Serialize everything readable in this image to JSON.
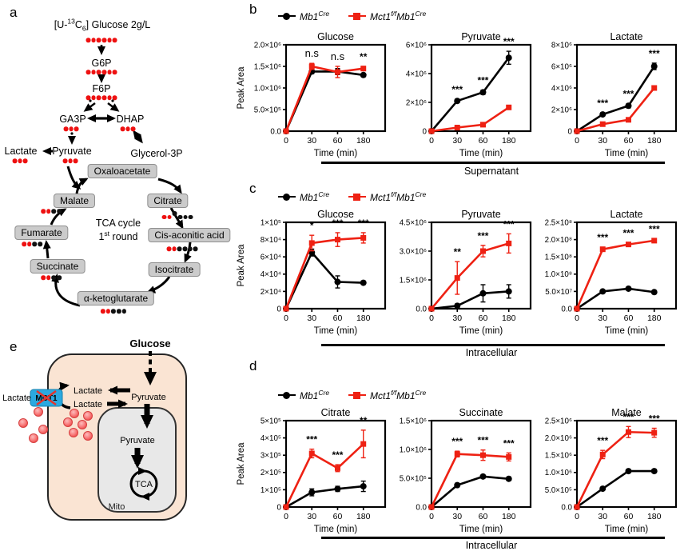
{
  "colors": {
    "series_black": "#000000",
    "series_red": "#ee2113",
    "carbon_red": "#ee1111",
    "carbon_black": "#111111",
    "tca_box_fill": "#cbcbcb",
    "cell_fill": "#fae4d3",
    "mito_fill": "#e8e8e8",
    "mct1_blue": "#2ba9e0",
    "cross_red": "#e4342c"
  },
  "legend": {
    "items": [
      {
        "marker": "black-circle",
        "base1": "Mb1",
        "sup1": "Cre",
        "base2": "",
        "sup2": ""
      },
      {
        "marker": "red-square",
        "base1": "Mct1",
        "sup1": "f/f",
        "base2": "Mb1",
        "sup2": "Cre"
      }
    ]
  },
  "rows": {
    "b": {
      "letter": "b",
      "ylabel": "Peak Area",
      "group_label": "Supernatant"
    },
    "c": {
      "letter": "c",
      "ylabel": "Peak Area",
      "group_label": "Intracellular"
    },
    "d": {
      "letter": "d",
      "ylabel": "Peak Area",
      "group_label": "Intracellular"
    }
  },
  "chart_data": [
    {
      "id": "b-glucose",
      "panel": "b",
      "type": "line",
      "title": "Glucose",
      "xlabel": "Time (min)",
      "ylabel": "Peak Area",
      "x": [
        0,
        30,
        60,
        180
      ],
      "ymax": 2000000.0,
      "grid": false,
      "yticks": [
        {
          "v": 0,
          "label": "0.0"
        },
        {
          "v": 500000.0,
          "label": "5.0×10⁵"
        },
        {
          "v": 1000000.0,
          "label": "1.0×10⁶"
        },
        {
          "v": 1500000.0,
          "label": "1.5×10⁶"
        },
        {
          "v": 2000000.0,
          "label": "2.0×10⁶"
        }
      ],
      "series": [
        {
          "name": "Mb1Cre",
          "color": "#000000",
          "marker": "circle",
          "values": [
            0,
            1380000.0,
            1380000.0,
            1300000.0
          ],
          "err": [
            0,
            50000.0,
            70000.0,
            40000.0
          ]
        },
        {
          "name": "Mct1f/fMb1Cre",
          "color": "#ee2113",
          "marker": "square",
          "values": [
            0,
            1500000.0,
            1370000.0,
            1450000.0
          ],
          "err": [
            0,
            70000.0,
            130000.0,
            50000.0
          ]
        }
      ],
      "annotations": [
        {
          "x": 30,
          "text": "n.s"
        },
        {
          "x": 60,
          "text": "n.s"
        },
        {
          "x": 180,
          "text": "**"
        }
      ]
    },
    {
      "id": "b-pyruvate",
      "panel": "b",
      "type": "line",
      "title": "Pyruvate",
      "xlabel": "Time (min)",
      "ylabel": "Peak Area",
      "x": [
        0,
        30,
        60,
        180
      ],
      "ymax": 6000000.0,
      "grid": false,
      "yticks": [
        {
          "v": 0,
          "label": "0"
        },
        {
          "v": 2000000.0,
          "label": "2×10⁶"
        },
        {
          "v": 4000000.0,
          "label": "4×10⁶"
        },
        {
          "v": 6000000.0,
          "label": "6×10⁶"
        }
      ],
      "series": [
        {
          "name": "Mb1Cre",
          "color": "#000000",
          "marker": "circle",
          "values": [
            0,
            2100000.0,
            2700000.0,
            5100000.0
          ],
          "err": [
            0,
            120000.0,
            150000.0,
            450000.0
          ]
        },
        {
          "name": "Mct1f/fMb1Cre",
          "color": "#ee2113",
          "marker": "square",
          "values": [
            0,
            250000.0,
            450000.0,
            1650000.0
          ],
          "err": [
            0,
            50000.0,
            60000.0,
            100000.0
          ]
        }
      ],
      "annotations": [
        {
          "x": 30,
          "text": "***"
        },
        {
          "x": 60,
          "text": "***"
        },
        {
          "x": 180,
          "text": "***"
        }
      ]
    },
    {
      "id": "b-lactate",
      "panel": "b",
      "type": "line",
      "title": "Lactate",
      "xlabel": "Time (min)",
      "ylabel": "Peak Area",
      "x": [
        0,
        30,
        60,
        180
      ],
      "ymax": 8000000.0,
      "grid": false,
      "yticks": [
        {
          "v": 0,
          "label": "0"
        },
        {
          "v": 2000000.0,
          "label": "2×10⁶"
        },
        {
          "v": 4000000.0,
          "label": "4×10⁶"
        },
        {
          "v": 6000000.0,
          "label": "6×10⁶"
        },
        {
          "v": 8000000.0,
          "label": "8×10⁶"
        }
      ],
      "series": [
        {
          "name": "Mb1Cre",
          "color": "#000000",
          "marker": "circle",
          "values": [
            0,
            1550000.0,
            2350000.0,
            6000000.0
          ],
          "err": [
            0,
            150000.0,
            200000.0,
            300000.0
          ]
        },
        {
          "name": "Mct1f/fMb1Cre",
          "color": "#ee2113",
          "marker": "square",
          "values": [
            0,
            650000.0,
            1050000.0,
            4000000.0
          ],
          "err": [
            0,
            80000.0,
            80000.0,
            150000.0
          ]
        }
      ],
      "annotations": [
        {
          "x": 30,
          "text": "***"
        },
        {
          "x": 60,
          "text": "***"
        },
        {
          "x": 180,
          "text": "***"
        }
      ]
    },
    {
      "id": "c-glucose",
      "panel": "c",
      "type": "line",
      "title": "Glucose",
      "xlabel": "Time (min)",
      "ylabel": "Peak Area",
      "x": [
        0,
        30,
        60,
        180
      ],
      "ymax": 100000.0,
      "grid": false,
      "yticks": [
        {
          "v": 0,
          "label": "0"
        },
        {
          "v": 20000.0,
          "label": "2×10⁴"
        },
        {
          "v": 40000.0,
          "label": "4×10⁴"
        },
        {
          "v": 60000.0,
          "label": "6×10⁴"
        },
        {
          "v": 80000.0,
          "label": "8×10⁴"
        },
        {
          "v": 100000.0,
          "label": "1×10⁵"
        }
      ],
      "series": [
        {
          "name": "Mb1Cre",
          "color": "#000000",
          "marker": "circle",
          "values": [
            0,
            65000.0,
            31000.0,
            30000.0
          ],
          "err": [
            0,
            4000.0,
            7000.0,
            2000.0
          ]
        },
        {
          "name": "Mct1f/fMb1Cre",
          "color": "#ee2113",
          "marker": "square",
          "values": [
            0,
            76000.0,
            80000.0,
            82000.0
          ],
          "err": [
            0,
            9000.0,
            8000.0,
            6000.0
          ]
        }
      ],
      "annotations": [
        {
          "x": 30,
          "text": "*"
        },
        {
          "x": 60,
          "text": "***"
        },
        {
          "x": 180,
          "text": "***"
        }
      ]
    },
    {
      "id": "c-pyruvate",
      "panel": "c",
      "type": "line",
      "title": "Pyruvate",
      "xlabel": "Time (min)",
      "ylabel": "Peak Area",
      "x": [
        0,
        30,
        60,
        180
      ],
      "ymax": 4500000.0,
      "grid": false,
      "yticks": [
        {
          "v": 0,
          "label": "0.0"
        },
        {
          "v": 1500000.0,
          "label": "1.5×10⁶"
        },
        {
          "v": 3000000.0,
          "label": "3.0×10⁶"
        },
        {
          "v": 4500000.0,
          "label": "4.5×10⁶"
        }
      ],
      "series": [
        {
          "name": "Mb1Cre",
          "color": "#000000",
          "marker": "circle",
          "values": [
            0,
            150000.0,
            800000.0,
            900000.0
          ],
          "err": [
            0,
            100000.0,
            450000.0,
            350000.0
          ]
        },
        {
          "name": "Mct1f/fMb1Cre",
          "color": "#ee2113",
          "marker": "square",
          "values": [
            0,
            1600000.0,
            3000000.0,
            3400000.0
          ],
          "err": [
            0,
            850000.0,
            300000.0,
            500000.0
          ]
        }
      ],
      "annotations": [
        {
          "x": 30,
          "text": "**"
        },
        {
          "x": 60,
          "text": "***"
        },
        {
          "x": 180,
          "text": "***"
        }
      ]
    },
    {
      "id": "c-lactate",
      "panel": "c",
      "type": "line",
      "title": "Lactate",
      "xlabel": "Time (min)",
      "ylabel": "Peak Area",
      "x": [
        0,
        30,
        60,
        180
      ],
      "ymax": 250000000.0,
      "grid": false,
      "yticks": [
        {
          "v": 0,
          "label": "0.0"
        },
        {
          "v": 50000000.0,
          "label": "5.0×10⁷"
        },
        {
          "v": 100000000.0,
          "label": "1.0×10⁸"
        },
        {
          "v": 150000000.0,
          "label": "1.5×10⁸"
        },
        {
          "v": 200000000.0,
          "label": "2.0×10⁸"
        },
        {
          "v": 250000000.0,
          "label": "2.5×10⁸"
        }
      ],
      "series": [
        {
          "name": "Mb1Cre",
          "color": "#000000",
          "marker": "circle",
          "values": [
            0,
            50000000.0,
            58000000.0,
            48000000.0
          ],
          "err": [
            0,
            4000000.0,
            4000000.0,
            4000000.0
          ]
        },
        {
          "name": "Mct1f/fMb1Cre",
          "color": "#ee2113",
          "marker": "square",
          "values": [
            0,
            172000000.0,
            186000000.0,
            197000000.0
          ],
          "err": [
            0,
            6000000.0,
            5000000.0,
            5000000.0
          ]
        }
      ],
      "annotations": [
        {
          "x": 30,
          "text": "***"
        },
        {
          "x": 60,
          "text": "***"
        },
        {
          "x": 180,
          "text": "***"
        }
      ]
    },
    {
      "id": "d-citrate",
      "panel": "d",
      "type": "line",
      "title": "Citrate",
      "xlabel": "Time (min)",
      "ylabel": "Peak Area",
      "x": [
        0,
        30,
        60,
        180
      ],
      "ymax": 500000.0,
      "grid": false,
      "yticks": [
        {
          "v": 0,
          "label": "0"
        },
        {
          "v": 100000.0,
          "label": "1×10⁵"
        },
        {
          "v": 200000.0,
          "label": "2×10⁵"
        },
        {
          "v": 300000.0,
          "label": "3×10⁵"
        },
        {
          "v": 400000.0,
          "label": "4×10⁵"
        },
        {
          "v": 500000.0,
          "label": "5×10⁵"
        }
      ],
      "series": [
        {
          "name": "Mb1Cre",
          "color": "#000000",
          "marker": "circle",
          "values": [
            0,
            85000.0,
            105000.0,
            120000.0
          ],
          "err": [
            0,
            20000.0,
            15000.0,
            30000.0
          ]
        },
        {
          "name": "Mct1f/fMb1Cre",
          "color": "#ee2113",
          "marker": "square",
          "values": [
            0,
            310000.0,
            225000.0,
            365000.0
          ],
          "err": [
            0,
            25000.0,
            20000.0,
            80000.0
          ]
        }
      ],
      "annotations": [
        {
          "x": 30,
          "text": "***"
        },
        {
          "x": 60,
          "text": "***"
        },
        {
          "x": 180,
          "text": "**"
        }
      ]
    },
    {
      "id": "d-succinate",
      "panel": "d",
      "type": "line",
      "title": "Succinate",
      "xlabel": "Time (min)",
      "ylabel": "Peak Area",
      "x": [
        0,
        30,
        60,
        180
      ],
      "ymax": 1500000.0,
      "grid": false,
      "yticks": [
        {
          "v": 0,
          "label": "0.0"
        },
        {
          "v": 500000.0,
          "label": "5.0×10⁵"
        },
        {
          "v": 1000000.0,
          "label": "1.0×10⁶"
        },
        {
          "v": 1500000.0,
          "label": "1.5×10⁶"
        }
      ],
      "series": [
        {
          "name": "Mb1Cre",
          "color": "#000000",
          "marker": "circle",
          "values": [
            0,
            380000.0,
            530000.0,
            490000.0
          ],
          "err": [
            0,
            30000.0,
            30000.0,
            30000.0
          ]
        },
        {
          "name": "Mct1f/fMb1Cre",
          "color": "#ee2113",
          "marker": "square",
          "values": [
            0,
            920000.0,
            900000.0,
            870000.0
          ],
          "err": [
            0,
            50000.0,
            90000.0,
            70000.0
          ]
        }
      ],
      "annotations": [
        {
          "x": 30,
          "text": "***"
        },
        {
          "x": 60,
          "text": "***"
        },
        {
          "x": 180,
          "text": "***"
        }
      ]
    },
    {
      "id": "d-malate",
      "panel": "d",
      "type": "line",
      "title": "Malate",
      "xlabel": "Time (min)",
      "ylabel": "Peak Area",
      "x": [
        0,
        30,
        60,
        180
      ],
      "ymax": 2500000.0,
      "grid": false,
      "yticks": [
        {
          "v": 0,
          "label": "0.0"
        },
        {
          "v": 500000.0,
          "label": "5.0×10⁵"
        },
        {
          "v": 1000000.0,
          "label": "1.0×10⁶"
        },
        {
          "v": 1500000.0,
          "label": "1.5×10⁶"
        },
        {
          "v": 2000000.0,
          "label": "2.0×10⁶"
        },
        {
          "v": 2500000.0,
          "label": "2.5×10⁶"
        }
      ],
      "series": [
        {
          "name": "Mb1Cre",
          "color": "#000000",
          "marker": "circle",
          "values": [
            0,
            530000.0,
            1040000.0,
            1040000.0
          ],
          "err": [
            0,
            40000.0,
            50000.0,
            50000.0
          ]
        },
        {
          "name": "Mct1f/fMb1Cre",
          "color": "#ee2113",
          "marker": "square",
          "values": [
            0,
            1520000.0,
            2170000.0,
            2150000.0
          ],
          "err": [
            0,
            120000.0,
            160000.0,
            130000.0
          ]
        }
      ],
      "annotations": [
        {
          "x": 30,
          "text": "***"
        },
        {
          "x": 60,
          "text": "***"
        },
        {
          "x": 180,
          "text": "***"
        }
      ]
    }
  ],
  "panel_a": {
    "label": "a",
    "source": {
      "pre": "[U-",
      "sup": "13",
      "c": "C",
      "sub": "6",
      "post": "] Glucose  2g/L"
    },
    "nodes": {
      "g6p": "G6P",
      "f6p": "F6P",
      "ga3p": "GA3P",
      "dhap": "DHAP",
      "lactate": "Lactate",
      "pyruvate": "Pyruvate",
      "glycerol3p": "Glycerol-3P"
    },
    "tca_boxes": {
      "oxaloacetate": "Oxaloacetate",
      "citrate": "Citrate",
      "cis_aconitic": "Cis-aconitic acid",
      "isocitrate": "Isocitrate",
      "akg": "α-ketoglutarate",
      "succinate": "Succinate",
      "fumarate": "Fumarate",
      "malate": "Malate"
    },
    "tca_center": {
      "line1": "TCA cycle",
      "line2_pre": "1",
      "line2_sup": "st",
      "line2_post": " round"
    },
    "dots": {
      "glucose": "rrrrrr",
      "g6p": "rrrrrr",
      "f6p": "rrrrrr",
      "ga3p": "rrr",
      "dhap": "rrr",
      "lactate": "rrr",
      "pyruvate": "rrr",
      "malate": "rrbb",
      "citrate": "rrBbbb",
      "fumarate": "rrbb",
      "cis_aconitic": "rrbbbb",
      "succinate": "rrbb",
      "akg": "rrbbb"
    }
  },
  "panel_e": {
    "label": "e",
    "glucose": "Glucose",
    "pyruvate_cytosol": "Pyruvate",
    "lactate_top": "Lactate",
    "lactate_bottom": "Lactate",
    "lactate_outside": "Lactate",
    "mct1": "MCT1",
    "pyruvate_mito": "Pyruvate",
    "tca": "TCA",
    "mito": "Mito"
  }
}
